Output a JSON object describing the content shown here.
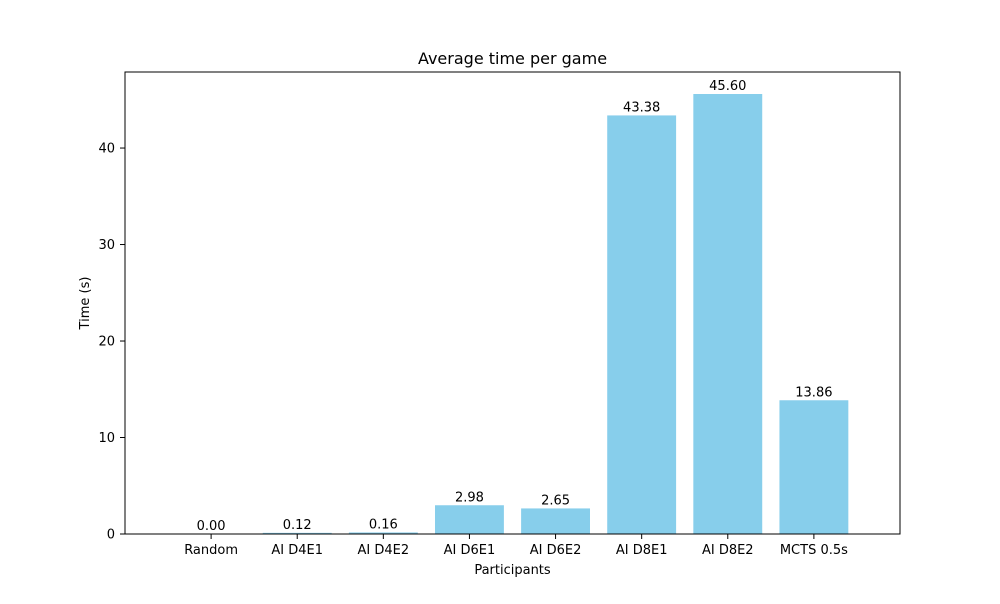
{
  "chart_data": {
    "type": "bar",
    "title": "Average time per game",
    "xlabel": "Participants",
    "ylabel": "Time (s)",
    "categories": [
      "Random",
      "AI D4E1",
      "AI D4E2",
      "AI D6E1",
      "AI D6E2",
      "AI D8E1",
      "AI D8E2",
      "MCTS 0.5s"
    ],
    "values": [
      0.0,
      0.12,
      0.16,
      2.98,
      2.65,
      43.38,
      45.6,
      13.86
    ],
    "value_labels": [
      "0.00",
      "0.12",
      "0.16",
      "2.98",
      "2.65",
      "43.38",
      "45.60",
      "13.86"
    ],
    "ylim": [
      0,
      47.88
    ],
    "yticks": [
      0,
      10,
      20,
      30,
      40
    ],
    "grid": false,
    "bar_color": "#87CEEB"
  }
}
